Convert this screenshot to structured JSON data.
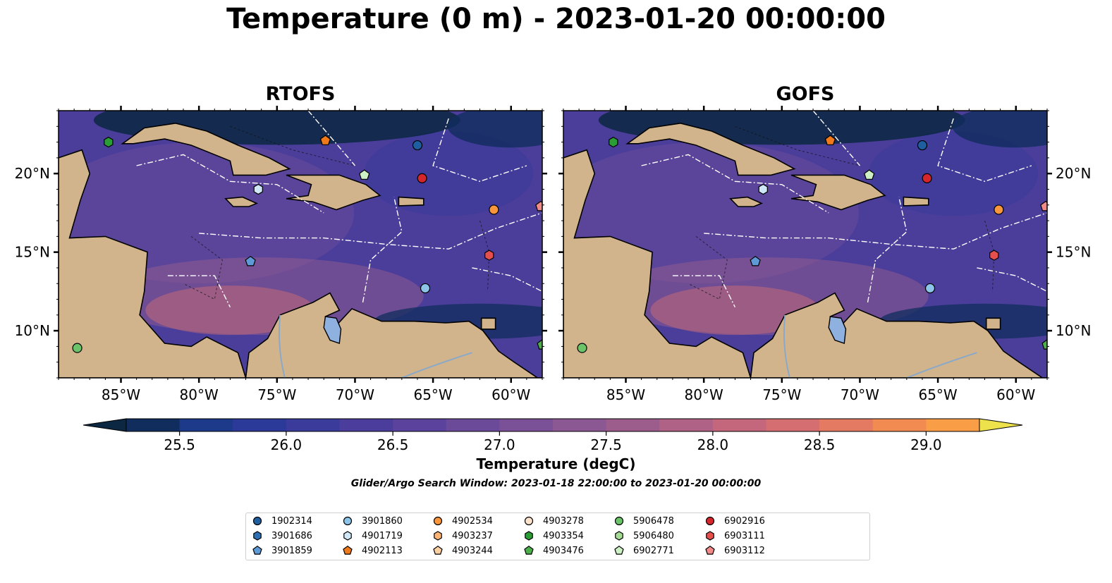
{
  "title": "Temperature (0 m) - 2023-01-20 00:00:00",
  "panels": [
    {
      "title": "RTOFS"
    },
    {
      "title": "GOFS"
    }
  ],
  "axes": {
    "lon_ticks": [
      "85°W",
      "80°W",
      "75°W",
      "70°W",
      "65°W",
      "60°W"
    ],
    "lon_values": [
      -85,
      -80,
      -75,
      -70,
      -65,
      -60
    ],
    "lat_ticks": [
      "20°N",
      "15°N",
      "10°N"
    ],
    "lat_values": [
      20,
      15,
      10
    ],
    "lon_range": [
      -89,
      -58
    ],
    "lat_range": [
      7,
      24
    ]
  },
  "colorbar": {
    "label": "Temperature (degC)",
    "ticks": [
      "25.5",
      "26.0",
      "26.5",
      "27.0",
      "27.5",
      "28.0",
      "28.5",
      "29.0"
    ],
    "tick_values": [
      25.5,
      26.0,
      26.5,
      27.0,
      27.5,
      28.0,
      28.5,
      29.0
    ],
    "range": [
      25.25,
      29.25
    ],
    "step": 0.25,
    "extend": "both",
    "colors": [
      "#0b2741",
      "#102d5e",
      "#1d3a8a",
      "#2b3a98",
      "#3b3b9b",
      "#4a3d9c",
      "#5a429d",
      "#6b4a9a",
      "#7a5197",
      "#8b5893",
      "#9c5d8d",
      "#b06286",
      "#c4677c",
      "#d56e70",
      "#e57a62",
      "#f28b52",
      "#f99e47",
      "#fbb53f",
      "#f8cc3f",
      "#ede24c"
    ]
  },
  "window_text": "Glider/Argo Search Window: 2023-01-18 22:00:00 to 2023-01-20 00:00:00",
  "floats": [
    {
      "id": "1902314",
      "marker": "circle",
      "color": "#1f5fa0",
      "lon": -66.0,
      "lat": 21.8
    },
    {
      "id": "3901686",
      "marker": "hexagon",
      "color": "#2e6fb3",
      "lon": null,
      "lat": null
    },
    {
      "id": "3901859",
      "marker": "pentagon",
      "color": "#5d9ad6",
      "lon": -76.7,
      "lat": 14.4
    },
    {
      "id": "3901860",
      "marker": "circle",
      "color": "#8dc4ea",
      "lon": -65.5,
      "lat": 12.7
    },
    {
      "id": "4901719",
      "marker": "hexagon",
      "color": "#cfe8f7",
      "lon": -76.2,
      "lat": 19.0
    },
    {
      "id": "4902113",
      "marker": "pentagon",
      "color": "#f07a1a",
      "lon": -71.9,
      "lat": 22.1
    },
    {
      "id": "4902534",
      "marker": "circle",
      "color": "#fb963a",
      "lon": -61.1,
      "lat": 17.7
    },
    {
      "id": "4903237",
      "marker": "hexagon",
      "color": "#fdb474",
      "lon": null,
      "lat": null
    },
    {
      "id": "4903244",
      "marker": "pentagon",
      "color": "#fdd0a2",
      "lon": null,
      "lat": null
    },
    {
      "id": "4903278",
      "marker": "circle",
      "color": "#fde3cc",
      "lon": null,
      "lat": null
    },
    {
      "id": "4903354",
      "marker": "hexagon",
      "color": "#2a9d34",
      "lon": -85.8,
      "lat": 22.0
    },
    {
      "id": "4903476",
      "marker": "pentagon",
      "color": "#4cb04a",
      "lon": -58.0,
      "lat": 9.1
    },
    {
      "id": "5906478",
      "marker": "circle",
      "color": "#6cc46a",
      "lon": -87.8,
      "lat": 8.9
    },
    {
      "id": "5906480",
      "marker": "hexagon",
      "color": "#a4dc96",
      "lon": null,
      "lat": null
    },
    {
      "id": "6902771",
      "marker": "pentagon",
      "color": "#cdf0c4",
      "lon": -69.4,
      "lat": 19.9
    },
    {
      "id": "6902916",
      "marker": "circle",
      "color": "#d7262b",
      "lon": -65.7,
      "lat": 19.7
    },
    {
      "id": "6903111",
      "marker": "hexagon",
      "color": "#e5504f",
      "lon": -61.4,
      "lat": 14.8
    },
    {
      "id": "6903112",
      "marker": "pentagon",
      "color": "#f28b88",
      "lon": -58.1,
      "lat": 17.9
    }
  ]
}
